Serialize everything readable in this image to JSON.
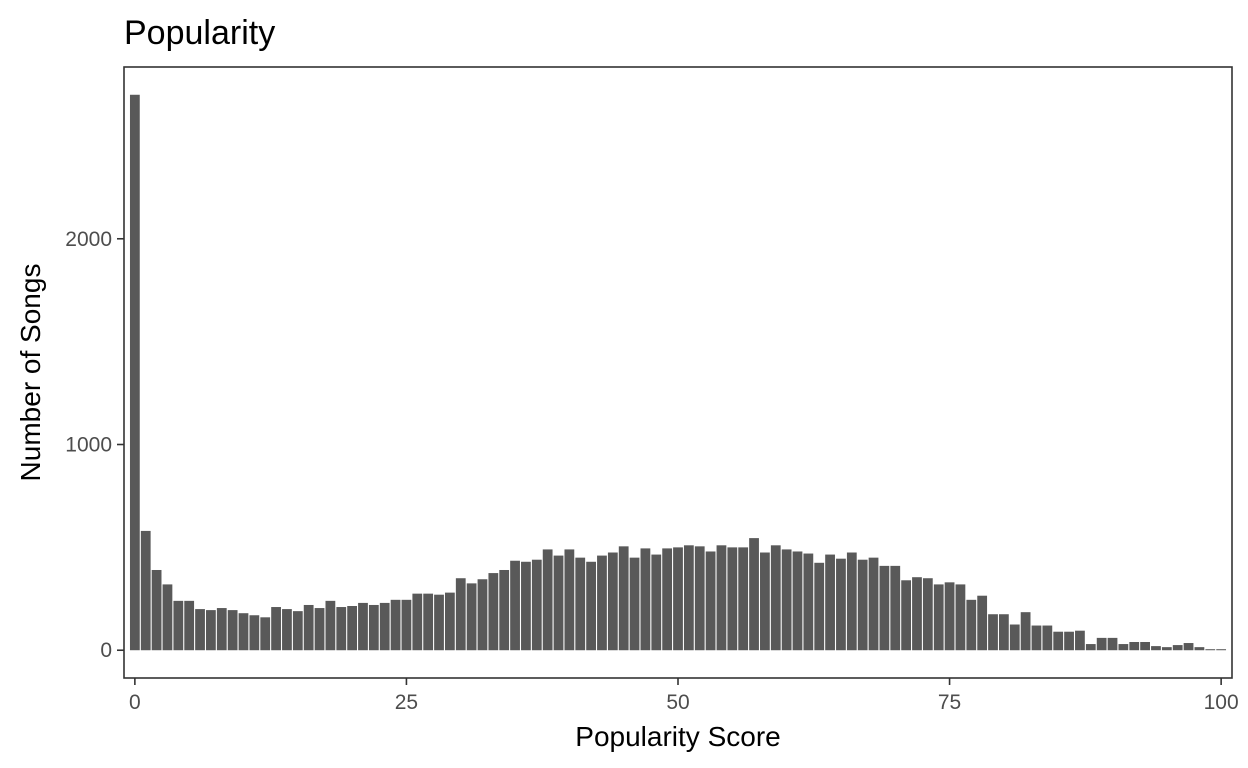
{
  "chart_data": {
    "type": "bar",
    "title": "Popularity",
    "xlabel": "Popularity Score",
    "ylabel": "Number of Songs",
    "xlim": [
      -1,
      101
    ],
    "ylim": [
      -135,
      2835
    ],
    "x_ticks": [
      0,
      25,
      50,
      75,
      100
    ],
    "x_tick_labels": [
      "0",
      "25",
      "50",
      "75",
      "100"
    ],
    "y_ticks": [
      0,
      1000,
      2000
    ],
    "y_tick_labels": [
      "0",
      "1000",
      "2000"
    ],
    "grid": false,
    "legend": "none",
    "bar_color": "#595959",
    "x": [
      0,
      1,
      2,
      3,
      4,
      5,
      6,
      7,
      8,
      9,
      10,
      11,
      12,
      13,
      14,
      15,
      16,
      17,
      18,
      19,
      20,
      21,
      22,
      23,
      24,
      25,
      26,
      27,
      28,
      29,
      30,
      31,
      32,
      33,
      34,
      35,
      36,
      37,
      38,
      39,
      40,
      41,
      42,
      43,
      44,
      45,
      46,
      47,
      48,
      49,
      50,
      51,
      52,
      53,
      54,
      55,
      56,
      57,
      58,
      59,
      60,
      61,
      62,
      63,
      64,
      65,
      66,
      67,
      68,
      69,
      70,
      71,
      72,
      73,
      74,
      75,
      76,
      77,
      78,
      79,
      80,
      81,
      82,
      83,
      84,
      85,
      86,
      87,
      88,
      89,
      90,
      91,
      92,
      93,
      94,
      95,
      96,
      97,
      98,
      99,
      100
    ],
    "values": [
      2700,
      580,
      390,
      320,
      240,
      240,
      200,
      195,
      205,
      195,
      180,
      170,
      160,
      210,
      200,
      190,
      220,
      205,
      240,
      210,
      215,
      230,
      220,
      230,
      245,
      245,
      275,
      275,
      270,
      280,
      350,
      325,
      345,
      375,
      390,
      435,
      430,
      440,
      490,
      460,
      490,
      450,
      430,
      460,
      475,
      505,
      450,
      495,
      465,
      495,
      500,
      510,
      505,
      480,
      510,
      500,
      500,
      545,
      475,
      510,
      490,
      480,
      470,
      425,
      465,
      445,
      475,
      440,
      450,
      410,
      410,
      340,
      355,
      350,
      320,
      330,
      320,
      245,
      265,
      175,
      175,
      125,
      185,
      120,
      120,
      90,
      90,
      95,
      30,
      60,
      60,
      30,
      40,
      40,
      20,
      15,
      25,
      35,
      15,
      5,
      5
    ]
  }
}
